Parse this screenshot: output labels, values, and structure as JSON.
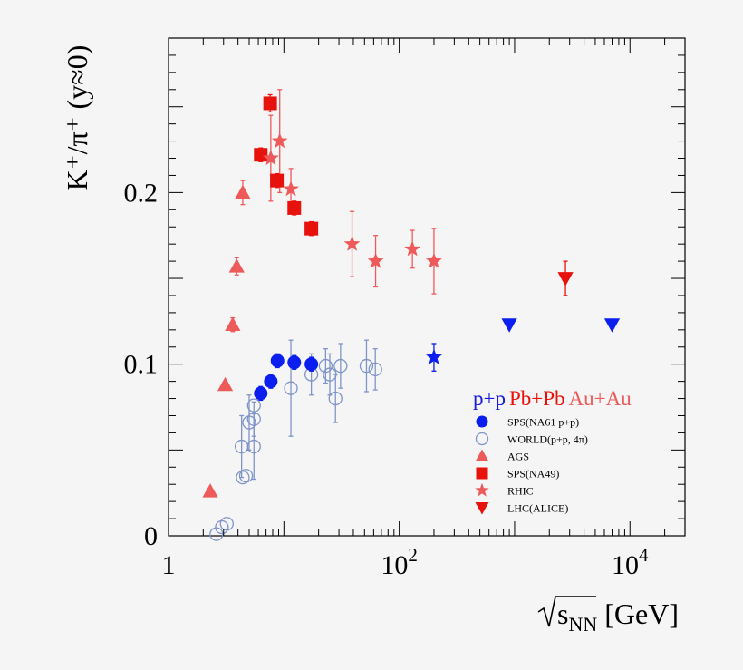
{
  "chart_data": {
    "type": "scatter",
    "x_scale": "log",
    "xlim": [
      1,
      30000
    ],
    "ylim": [
      0,
      0.29
    ],
    "grid": false,
    "legend_position": "bottom-right",
    "x_ticks": [
      {
        "value": 1,
        "label": "1"
      },
      {
        "value": 100,
        "base": "10",
        "exp": "2"
      },
      {
        "value": 10000,
        "base": "10",
        "exp": "4"
      }
    ],
    "y_ticks": [
      {
        "value": 0,
        "label": "0"
      },
      {
        "value": 0.1,
        "label": "0.1"
      },
      {
        "value": 0.2,
        "label": "0.2"
      }
    ],
    "xlabel": {
      "sub": "NN",
      "unit": " [GeV]"
    },
    "ylabel": "K⁺/π⁺ (y≈0)",
    "legend_header": [
      {
        "text": "p+p",
        "color": "#1a1adc"
      },
      {
        "text": "Pb+Pb",
        "color": "#e8120c"
      },
      {
        "text": "Au+Au",
        "color": "#ee5a5a"
      }
    ],
    "series": [
      {
        "name": "WORLD(p+p, 4π)",
        "marker": "circle-open",
        "color": "#7f95c9",
        "points": [
          {
            "x": 2.6,
            "y": 0.001
          },
          {
            "x": 2.9,
            "y": 0.005
          },
          {
            "x": 3.2,
            "y": 0.007
          },
          {
            "x": 4.3,
            "y": 0.052,
            "err": 0.018
          },
          {
            "x": 4.4,
            "y": 0.034
          },
          {
            "x": 4.7,
            "y": 0.035
          },
          {
            "x": 5.0,
            "y": 0.066,
            "err": 0.016
          },
          {
            "x": 5.5,
            "y": 0.052,
            "err": 0.019
          },
          {
            "x": 5.5,
            "y": 0.068,
            "err": 0.01
          },
          {
            "x": 5.5,
            "y": 0.076
          },
          {
            "x": 11.5,
            "y": 0.086,
            "err": 0.028
          },
          {
            "x": 17.3,
            "y": 0.094,
            "err": 0.012
          },
          {
            "x": 23.0,
            "y": 0.099,
            "err": 0.01
          },
          {
            "x": 25.0,
            "y": 0.094,
            "err": 0.012
          },
          {
            "x": 28.0,
            "y": 0.08,
            "err": 0.014
          },
          {
            "x": 31.0,
            "y": 0.099,
            "err": 0.013
          },
          {
            "x": 52.0,
            "y": 0.099,
            "err": 0.015
          },
          {
            "x": 62.0,
            "y": 0.097,
            "err": 0.012
          }
        ]
      },
      {
        "name": "SPS(NA61 p+p)",
        "marker": "circle",
        "color": "#0a1ef0",
        "points": [
          {
            "x": 6.3,
            "y": 0.083,
            "err": 0.004
          },
          {
            "x": 7.7,
            "y": 0.09,
            "err": 0.004
          },
          {
            "x": 8.8,
            "y": 0.102,
            "err": 0.004
          },
          {
            "x": 12.3,
            "y": 0.101,
            "err": 0.004
          },
          {
            "x": 17.3,
            "y": 0.1,
            "err": 0.004
          }
        ]
      },
      {
        "name": "AGS",
        "marker": "triangle-up",
        "color": "#ee5a5a",
        "points": [
          {
            "x": 2.3,
            "y": 0.026
          },
          {
            "x": 3.1,
            "y": 0.088
          },
          {
            "x": 3.6,
            "y": 0.123,
            "err": 0.004
          },
          {
            "x": 3.9,
            "y": 0.157,
            "err": 0.005
          },
          {
            "x": 4.4,
            "y": 0.2,
            "err": 0.007
          }
        ]
      },
      {
        "name": "SPS(NA49)",
        "marker": "square",
        "color": "#e8120c",
        "points": [
          {
            "x": 6.3,
            "y": 0.222,
            "err": 0.004
          },
          {
            "x": 7.6,
            "y": 0.252,
            "err": 0.005
          },
          {
            "x": 8.7,
            "y": 0.207,
            "err": 0.004
          },
          {
            "x": 12.3,
            "y": 0.191,
            "err": 0.004
          },
          {
            "x": 17.3,
            "y": 0.179,
            "err": 0.004
          }
        ]
      },
      {
        "name": "RHIC",
        "marker": "star",
        "color": "#ee5a5a",
        "points": [
          {
            "x": 7.7,
            "y": 0.22,
            "err": 0.025
          },
          {
            "x": 9.2,
            "y": 0.23,
            "err": 0.03
          },
          {
            "x": 11.5,
            "y": 0.202,
            "err": 0.012
          },
          {
            "x": 39.0,
            "y": 0.17,
            "err": 0.019
          },
          {
            "x": 62.4,
            "y": 0.16,
            "err": 0.015
          },
          {
            "x": 130.0,
            "y": 0.167,
            "err": 0.011
          },
          {
            "x": 200.0,
            "y": 0.16,
            "err": 0.019
          }
        ]
      },
      {
        "name": "",
        "marker": "star",
        "color": "#0a1ef0",
        "points": [
          {
            "x": 200.0,
            "y": 0.104,
            "err": 0.008
          }
        ]
      },
      {
        "name": "LHC(ALICE)",
        "marker": "triangle-down",
        "color": "#e8120c",
        "points": [
          {
            "x": 2760.0,
            "y": 0.15,
            "err": 0.01
          }
        ]
      },
      {
        "name": "",
        "marker": "triangle-down",
        "color": "#0a1ef0",
        "points": [
          {
            "x": 900.0,
            "y": 0.123
          },
          {
            "x": 7000.0,
            "y": 0.123
          }
        ]
      }
    ],
    "legend_order": [
      "SPS(NA61 p+p)",
      "WORLD(p+p, 4π)",
      "AGS",
      "SPS(NA49)",
      "RHIC",
      "LHC(ALICE)"
    ]
  }
}
